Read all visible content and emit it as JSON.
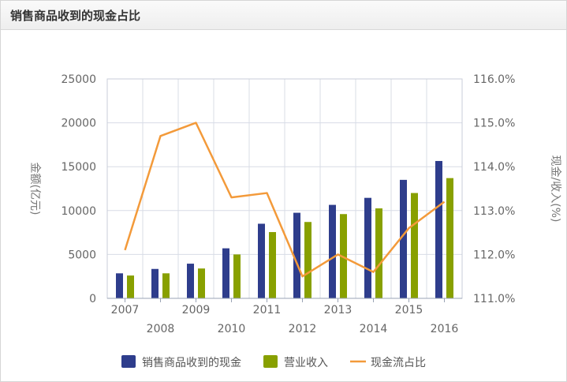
{
  "header": {
    "title": "销售商品收到的现金占比"
  },
  "chart_data": {
    "type": "bar",
    "categories": [
      "2007",
      "2008",
      "2009",
      "2010",
      "2011",
      "2012",
      "2013",
      "2014",
      "2015",
      "2016"
    ],
    "series": [
      {
        "name": "销售商品收到的现金",
        "kind": "bar",
        "axis": "left",
        "color": "#2e3d8c",
        "values": [
          2850,
          3350,
          3950,
          5700,
          8500,
          9750,
          10650,
          11450,
          13500,
          15650
        ]
      },
      {
        "name": "营业收入",
        "kind": "bar",
        "axis": "left",
        "color": "#88a000",
        "values": [
          2600,
          2850,
          3400,
          5000,
          7550,
          8700,
          9600,
          10250,
          12000,
          13700
        ]
      },
      {
        "name": "现金流占比",
        "kind": "line",
        "axis": "right",
        "color": "#f39a3a",
        "values": [
          112.1,
          114.7,
          115.0,
          113.3,
          113.4,
          111.5,
          112.0,
          111.6,
          112.6,
          113.2
        ]
      }
    ],
    "y_left": {
      "label": "金额(亿元)",
      "min": 0,
      "max": 25000,
      "ticks": [
        "0",
        "5000",
        "10000",
        "15000",
        "20000",
        "25000"
      ]
    },
    "y_right": {
      "label": "现金/收入(%)",
      "min": 111,
      "max": 116,
      "ticks": [
        "111.0%",
        "112.0%",
        "113.0%",
        "114.0%",
        "115.0%",
        "116.0%"
      ]
    },
    "grid": true,
    "legend_position": "bottom"
  }
}
